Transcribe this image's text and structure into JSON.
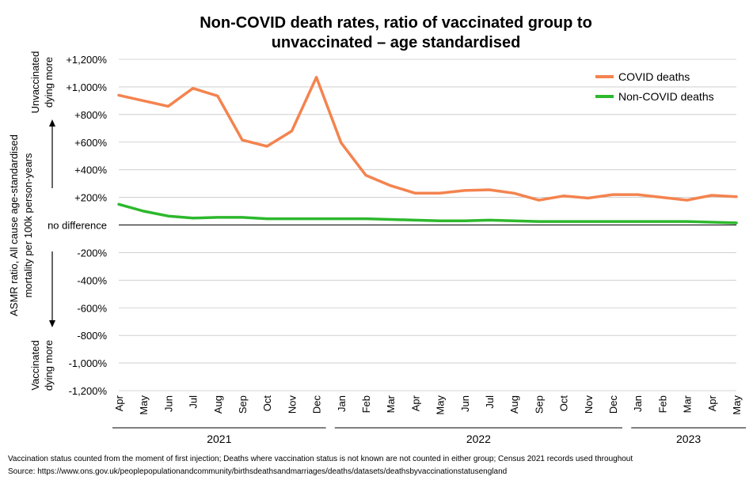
{
  "chart_data": {
    "type": "line",
    "title_lines": [
      "Non-COVID death rates, ratio of vaccinated group to",
      "unvaccinated – age standardised"
    ],
    "ylabel_lines": [
      "ASMR ratio, All cause age-standardised",
      "mortality per 100k person-years"
    ],
    "y_upper_annotation": [
      "Unvaccinated",
      "dying more"
    ],
    "y_lower_annotation": [
      "Vaccinated",
      "dying more"
    ],
    "ylim": [
      -1200,
      1200
    ],
    "y_ticks": [
      {
        "value": 1200,
        "label": "+1,200%"
      },
      {
        "value": 1000,
        "label": "+1,000%"
      },
      {
        "value": 800,
        "label": "+800%"
      },
      {
        "value": 600,
        "label": "+600%"
      },
      {
        "value": 400,
        "label": "+400%"
      },
      {
        "value": 200,
        "label": "+200%"
      },
      {
        "value": 0,
        "label": "no difference"
      },
      {
        "value": -200,
        "label": "-200%"
      },
      {
        "value": -400,
        "label": "-400%"
      },
      {
        "value": -600,
        "label": "-600%"
      },
      {
        "value": -800,
        "label": "-800%"
      },
      {
        "value": -1000,
        "label": "-1,000%"
      },
      {
        "value": -1200,
        "label": "-1,200%"
      }
    ],
    "categories": [
      "Apr",
      "May",
      "Jun",
      "Jul",
      "Aug",
      "Sep",
      "Oct",
      "Nov",
      "Dec",
      "Jan",
      "Feb",
      "Mar",
      "Apr",
      "May",
      "Jun",
      "Jul",
      "Aug",
      "Sep",
      "Oct",
      "Nov",
      "Dec",
      "Jan",
      "Feb",
      "Mar",
      "Apr",
      "May"
    ],
    "year_groups": [
      {
        "label": "2021",
        "start": 0,
        "end": 8
      },
      {
        "label": "2022",
        "start": 9,
        "end": 20
      },
      {
        "label": "2023",
        "start": 21,
        "end": 25
      }
    ],
    "series": [
      {
        "name": "COVID deaths",
        "color": "#f4834f",
        "values": [
          940,
          900,
          860,
          990,
          935,
          615,
          570,
          680,
          1070,
          595,
          360,
          285,
          230,
          230,
          250,
          255,
          230,
          180,
          210,
          195,
          220,
          220,
          200,
          180,
          215,
          205
        ]
      },
      {
        "name": "Non-COVID deaths",
        "color": "#2db82d",
        "values": [
          150,
          100,
          65,
          50,
          55,
          55,
          45,
          45,
          45,
          45,
          45,
          40,
          35,
          30,
          30,
          35,
          30,
          25,
          25,
          25,
          25,
          25,
          25,
          25,
          20,
          15
        ]
      }
    ],
    "legend_position": "top-right",
    "grid": "horizontal"
  },
  "footnotes": [
    "Vaccination status counted from the moment of first injection; Deaths where vaccination status is not known are not counted in either group; Census 2021 records used throughout",
    "Source: https://www.ons.gov.uk/peoplepopulationandcommunity/birthsdeathsandmarriages/deaths/datasets/deathsbyvaccinationstatusengland"
  ]
}
